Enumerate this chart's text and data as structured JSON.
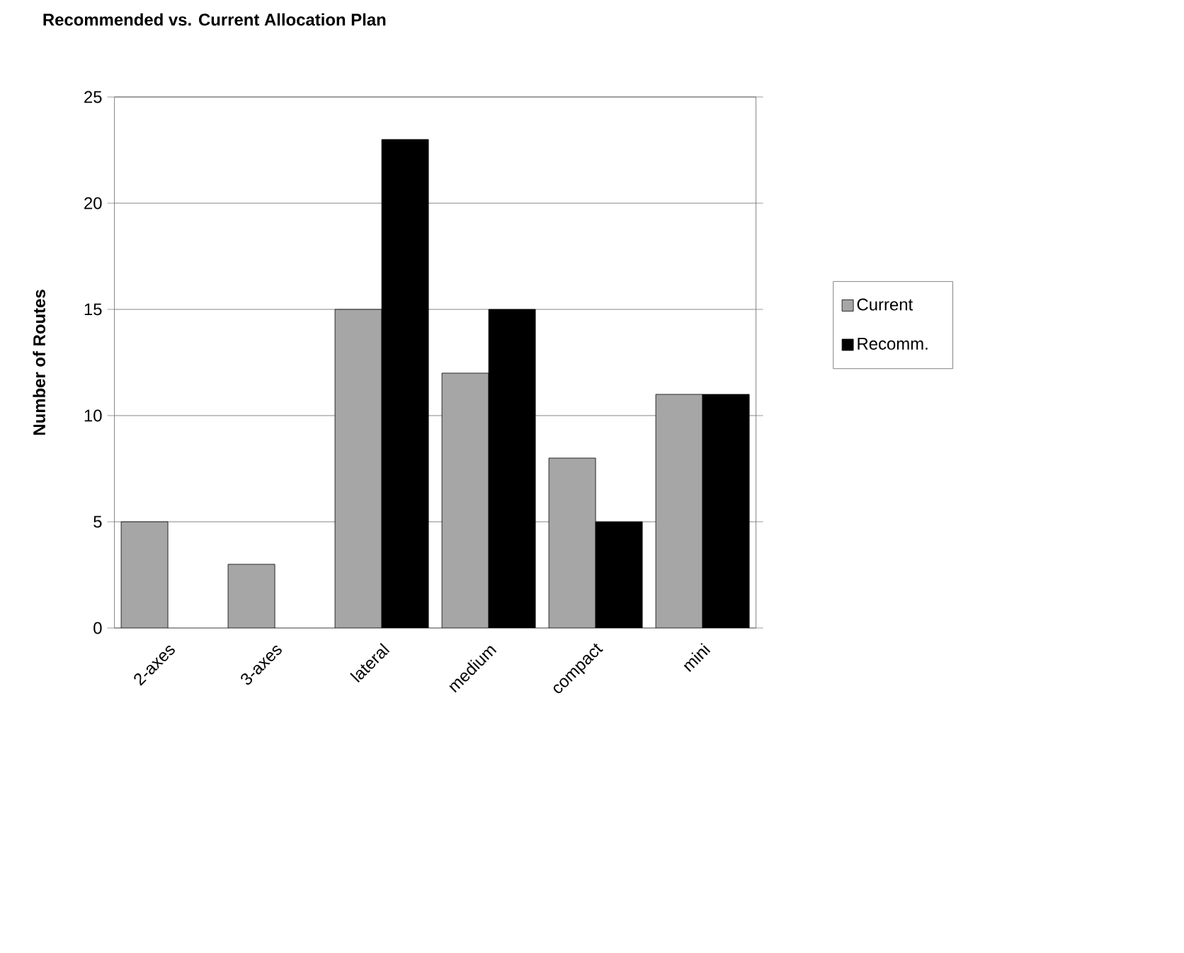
{
  "chart_data": {
    "type": "bar",
    "title": "Recommended vs. Current Allocation Plan",
    "ylabel": "Number of Routes",
    "categories": [
      "2-axes",
      "3-axes",
      "lateral",
      "medium",
      "compact",
      "mini"
    ],
    "series": [
      {
        "name": "Current",
        "color": "#a6a6a6",
        "values": [
          5,
          3,
          15,
          12,
          8,
          11
        ]
      },
      {
        "name": "Recomm.",
        "color": "#000000",
        "values": [
          null,
          null,
          23,
          15,
          5,
          11
        ]
      }
    ],
    "ylim": [
      0,
      25
    ],
    "yticks": [
      0,
      5,
      10,
      15,
      20,
      25
    ],
    "grid": "y",
    "legend": "right"
  }
}
